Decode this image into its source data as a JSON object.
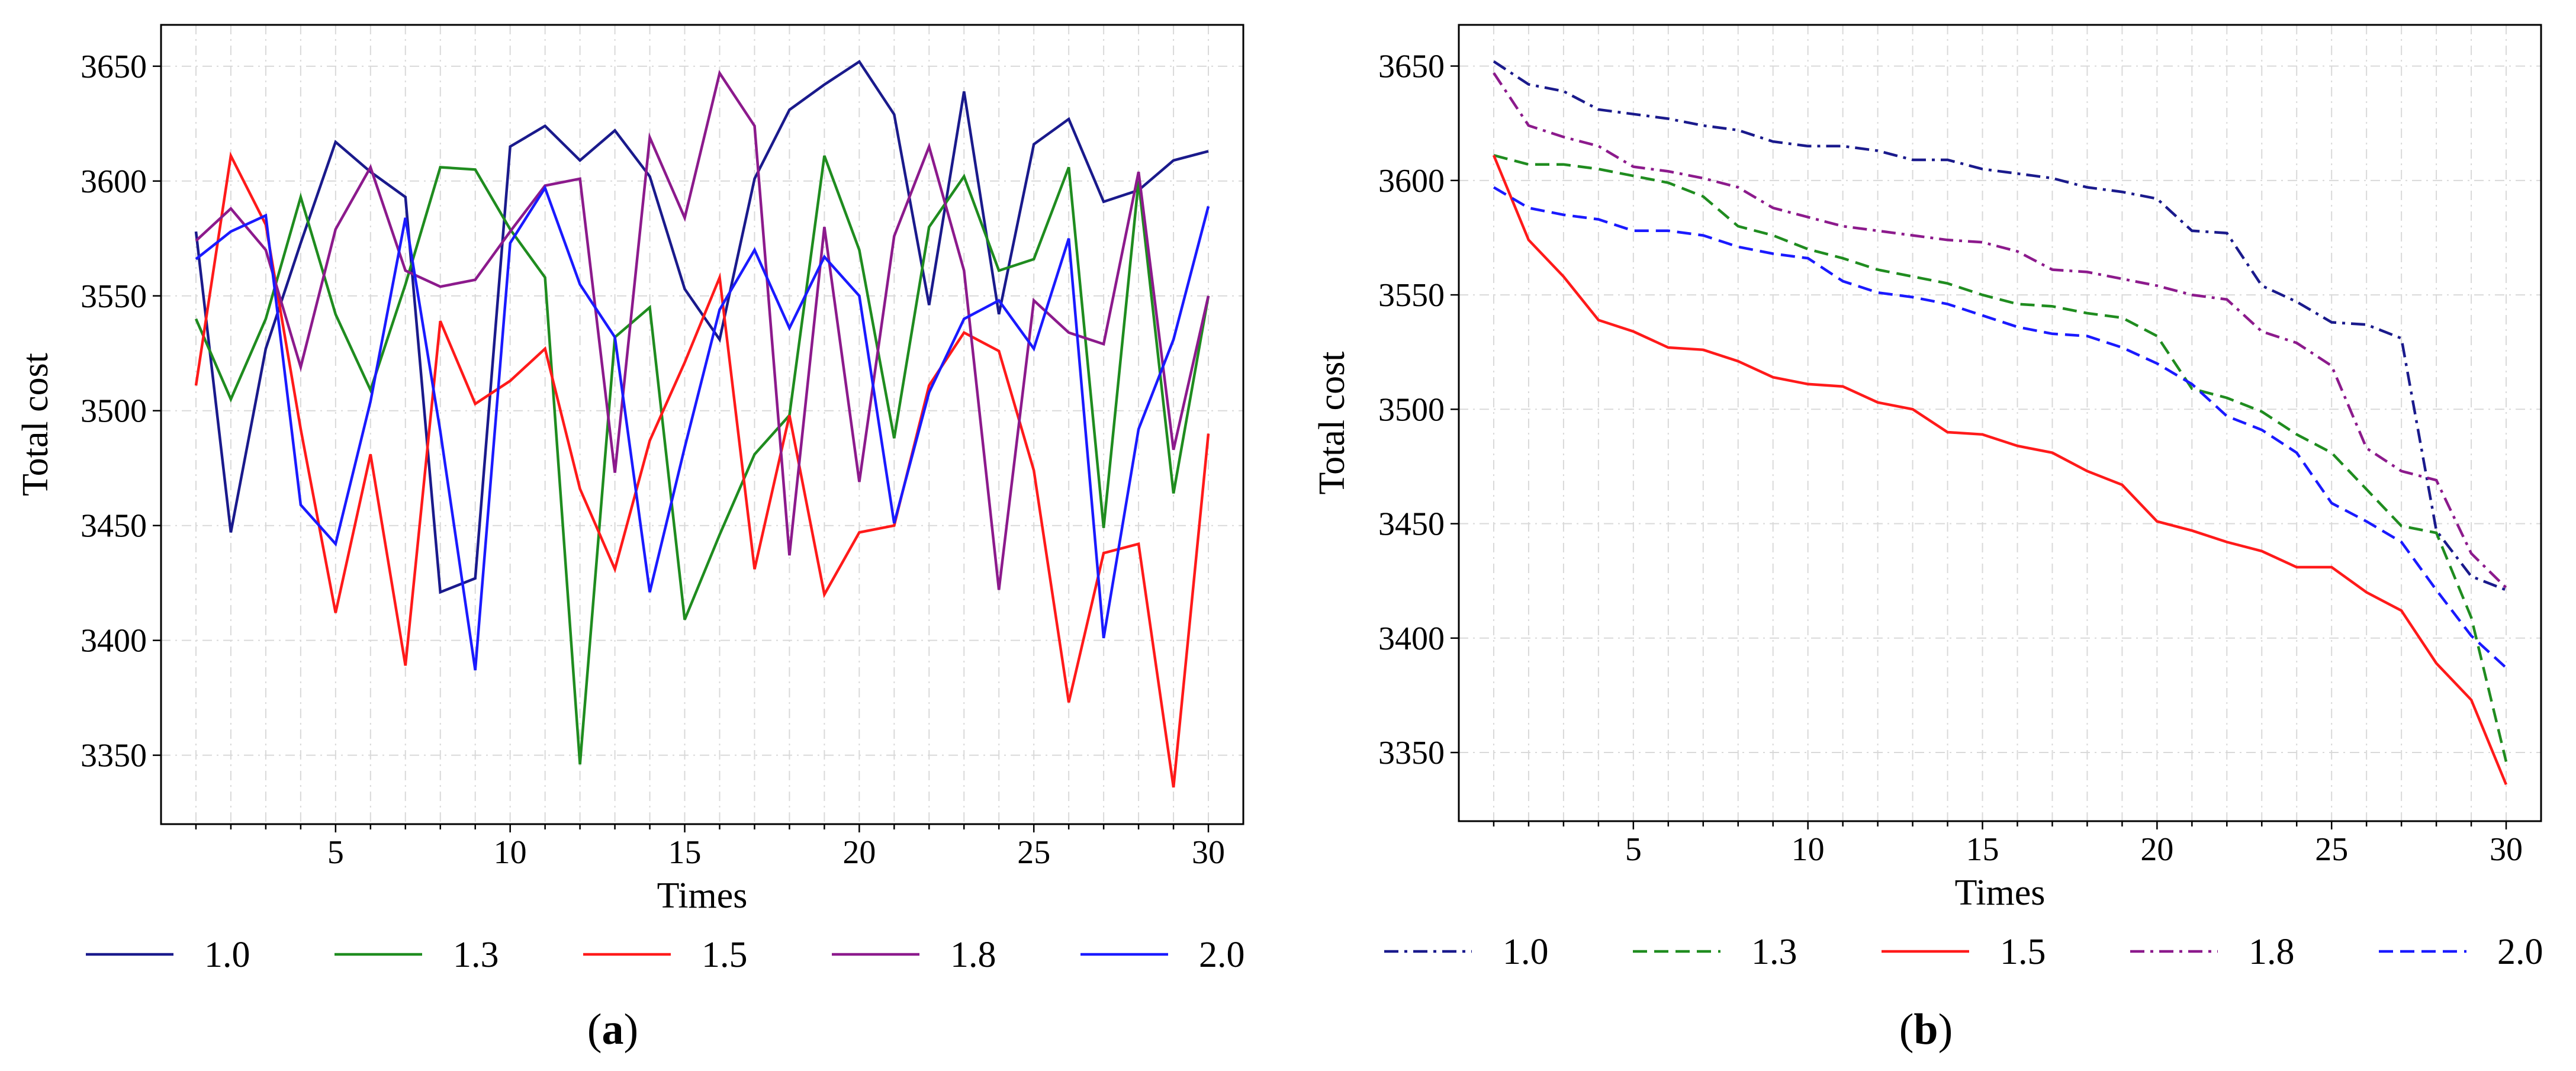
{
  "chart_data": [
    {
      "type": "line",
      "panel_label": "a",
      "title": "",
      "xlabel": "Times",
      "ylabel": "Total cost",
      "xlim": [
        0,
        31
      ],
      "ylim": [
        3320,
        3668
      ],
      "xticks": [
        5,
        10,
        15,
        20,
        25,
        30
      ],
      "yticks": [
        3350,
        3400,
        3450,
        3500,
        3550,
        3600,
        3650
      ],
      "grid": true,
      "legend_position": "bottom",
      "x": [
        1,
        2,
        3,
        4,
        5,
        6,
        7,
        8,
        9,
        10,
        11,
        12,
        13,
        14,
        15,
        16,
        17,
        18,
        19,
        20,
        21,
        22,
        23,
        24,
        25,
        26,
        27,
        28,
        29,
        30
      ],
      "series": [
        {
          "name": "1.0",
          "color": "#1a1a8c",
          "style": "solid",
          "values": [
            3578,
            3447,
            3527,
            3573,
            3617,
            3604,
            3593,
            3421,
            3427,
            3615,
            3624,
            3609,
            3622,
            3602,
            3553,
            3531,
            3601,
            3631,
            3642,
            3652,
            3629,
            3546,
            3639,
            3542,
            3616,
            3627,
            3591,
            3596,
            3609,
            3613
          ]
        },
        {
          "name": "1.3",
          "color": "#1f8c1f",
          "style": "solid",
          "values": [
            3540,
            3505,
            3540,
            3593,
            3542,
            3509,
            3555,
            3606,
            3605,
            3579,
            3558,
            3346,
            3532,
            3545,
            3409,
            3446,
            3481,
            3498,
            3611,
            3570,
            3488,
            3580,
            3602,
            3561,
            3566,
            3606,
            3449,
            3600,
            3464,
            3550
          ]
        },
        {
          "name": "1.5",
          "color": "#ff1a1a",
          "style": "solid",
          "values": [
            3511,
            3611,
            3581,
            3492,
            3412,
            3481,
            3389,
            3539,
            3503,
            3513,
            3527,
            3466,
            3431,
            3487,
            3521,
            3558,
            3431,
            3498,
            3420,
            3447,
            3450,
            3511,
            3534,
            3526,
            3474,
            3373,
            3438,
            3442,
            3336,
            3490
          ]
        },
        {
          "name": "1.8",
          "color": "#8c1a8c",
          "style": "solid",
          "values": [
            3574,
            3588,
            3570,
            3519,
            3579,
            3606,
            3561,
            3554,
            3557,
            3578,
            3598,
            3601,
            3473,
            3619,
            3584,
            3647,
            3624,
            3437,
            3580,
            3469,
            3576,
            3615,
            3561,
            3422,
            3548,
            3534,
            3529,
            3604,
            3483,
            3550
          ]
        },
        {
          "name": "2.0",
          "color": "#1a1aff",
          "style": "solid",
          "values": [
            3566,
            3578,
            3585,
            3459,
            3442,
            3504,
            3584,
            3491,
            3387,
            3573,
            3597,
            3555,
            3532,
            3421,
            3484,
            3544,
            3570,
            3536,
            3567,
            3550,
            3451,
            3508,
            3540,
            3548,
            3527,
            3575,
            3401,
            3492,
            3531,
            3589
          ]
        }
      ]
    },
    {
      "type": "line",
      "panel_label": "b",
      "title": "",
      "xlabel": "Times",
      "ylabel": "Total cost",
      "xlim": [
        0,
        31
      ],
      "ylim": [
        3320,
        3668
      ],
      "xticks": [
        5,
        10,
        15,
        20,
        25,
        30
      ],
      "yticks": [
        3350,
        3400,
        3450,
        3500,
        3550,
        3600,
        3650
      ],
      "grid": true,
      "legend_position": "bottom",
      "x": [
        1,
        2,
        3,
        4,
        5,
        6,
        7,
        8,
        9,
        10,
        11,
        12,
        13,
        14,
        15,
        16,
        17,
        18,
        19,
        20,
        21,
        22,
        23,
        24,
        25,
        26,
        27,
        28,
        29,
        30
      ],
      "series": [
        {
          "name": "1.0",
          "color": "#1a1a8c",
          "style": "dashdot",
          "values": [
            3652,
            3642,
            3639,
            3631,
            3629,
            3627,
            3624,
            3622,
            3617,
            3615,
            3615,
            3613,
            3609,
            3609,
            3605,
            3603,
            3601,
            3597,
            3595,
            3592,
            3578,
            3577,
            3554,
            3547,
            3538,
            3537,
            3531,
            3447,
            3427,
            3421
          ]
        },
        {
          "name": "1.3",
          "color": "#1f8c1f",
          "style": "dashed",
          "values": [
            3611,
            3607,
            3607,
            3605,
            3602,
            3599,
            3593,
            3580,
            3576,
            3570,
            3566,
            3561,
            3558,
            3555,
            3550,
            3546,
            3545,
            3542,
            3540,
            3532,
            3509,
            3505,
            3499,
            3489,
            3481,
            3465,
            3449,
            3446,
            3409,
            3346
          ]
        },
        {
          "name": "1.5",
          "color": "#ff1a1a",
          "style": "solid",
          "values": [
            3611,
            3574,
            3558,
            3539,
            3534,
            3527,
            3526,
            3521,
            3514,
            3511,
            3510,
            3503,
            3500,
            3490,
            3489,
            3484,
            3481,
            3473,
            3467,
            3451,
            3447,
            3442,
            3438,
            3431,
            3431,
            3420,
            3412,
            3389,
            3373,
            3336
          ]
        },
        {
          "name": "1.8",
          "color": "#8c1a8c",
          "style": "dashdot",
          "values": [
            3647,
            3624,
            3619,
            3615,
            3606,
            3604,
            3601,
            3597,
            3588,
            3584,
            3580,
            3578,
            3576,
            3574,
            3573,
            3569,
            3561,
            3560,
            3557,
            3554,
            3550,
            3548,
            3534,
            3529,
            3519,
            3483,
            3473,
            3469,
            3437,
            3422
          ]
        },
        {
          "name": "2.0",
          "color": "#1a1aff",
          "style": "dashed",
          "values": [
            3597,
            3588,
            3585,
            3583,
            3578,
            3578,
            3576,
            3571,
            3568,
            3566,
            3556,
            3551,
            3549,
            3546,
            3541,
            3536,
            3533,
            3532,
            3527,
            3520,
            3511,
            3497,
            3491,
            3481,
            3459,
            3451,
            3442,
            3421,
            3401,
            3387
          ]
        }
      ]
    }
  ]
}
